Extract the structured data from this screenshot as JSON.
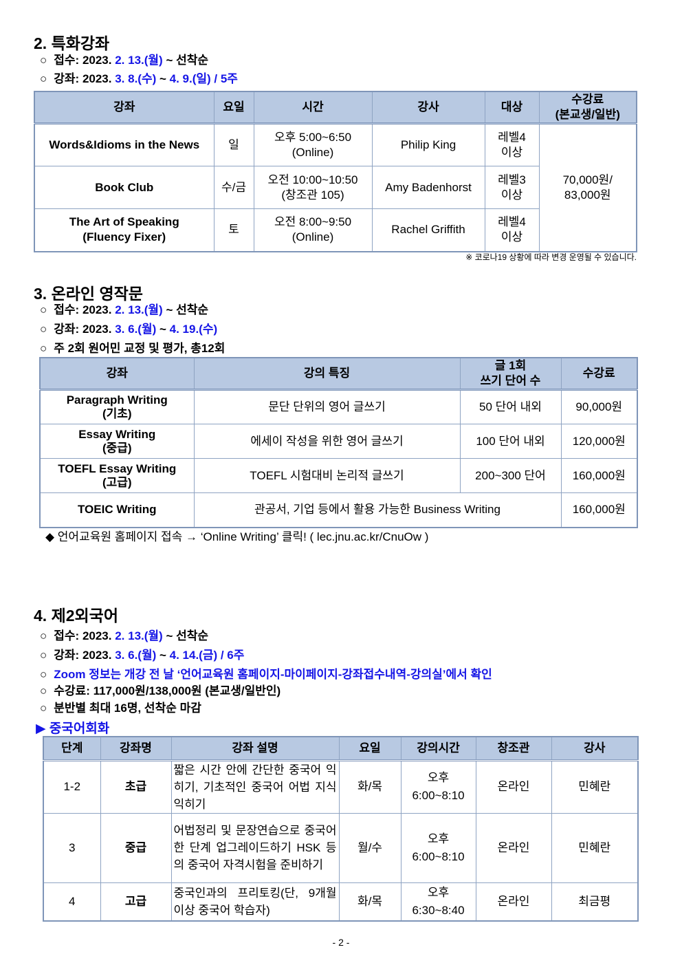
{
  "colors": {
    "accent_blue": "#1515e6",
    "table_header": "#b8c9e2",
    "table_border": "#7f95b8"
  },
  "sec2": {
    "title": "2. 특화강좌",
    "lines": [
      [
        {
          "t": "접수: 2023. "
        },
        {
          "t": "2. 13.(월)",
          "blue": true
        },
        {
          "t": " ~ 선착순"
        }
      ],
      [
        {
          "t": "강좌: 2023. "
        },
        {
          "t": "3. 8.(수)",
          "blue": true
        },
        {
          "t": " ~ "
        },
        {
          "t": "4. 9.(일)",
          "blue": true
        },
        {
          "t": " / 5주",
          "blue": true
        }
      ]
    ],
    "headers": [
      "강좌",
      "요일",
      "시간",
      "강사",
      "대상",
      "수강료\n(본교생/일반)"
    ],
    "rows": [
      {
        "course": "Words&Idioms in the News",
        "day": "일",
        "time": "오후 5:00~6:50\n(Online)",
        "teacher": "Philip King",
        "target": "레벨4\n이상"
      },
      {
        "course": "Book Club",
        "day": "수/금",
        "time": "오전 10:00~10:50\n(창조관 105)",
        "teacher": "Amy Badenhorst",
        "target": "레벨3\n이상"
      },
      {
        "course": "The Art of Speaking\n(Fluency Fixer)",
        "day": "토",
        "time": "오전 8:00~9:50\n(Online)",
        "teacher": "Rachel Griffith",
        "target": "레벨4\n이상"
      }
    ],
    "fee": "70,000원/\n83,000원",
    "note": "※ 코로나19 상황에 따라 변경 운영될 수 있습니다."
  },
  "sec3": {
    "title": "3. 온라인 영작문",
    "lines": [
      [
        {
          "t": "접수: 2023. "
        },
        {
          "t": "2. 13.(월)",
          "blue": true
        },
        {
          "t": " ~ 선착순"
        }
      ],
      [
        {
          "t": "강좌: 2023. "
        },
        {
          "t": "3. 6.(월)",
          "blue": true
        },
        {
          "t": " ~ "
        },
        {
          "t": "4. 19.(수)",
          "blue": true
        }
      ],
      [
        {
          "t": "주 2회 원어민 교정 및 평가, 총12회"
        }
      ]
    ],
    "headers": [
      "강좌",
      "강의 특징",
      "글 1회\n쓰기 단어 수",
      "수강료"
    ],
    "rows": [
      {
        "course": "Paragraph Writing\n(기초)",
        "feature": "문단 단위의 영어 글쓰기",
        "words": "50 단어 내외",
        "fee": "90,000원"
      },
      {
        "course": "Essay Writing\n(중급)",
        "feature": "에세이 작성을 위한 영어 글쓰기",
        "words": "100 단어 내외",
        "fee": "120,000원"
      },
      {
        "course": "TOEFL Essay Writing\n(고급)",
        "feature": "TOEFL 시험대비 논리적 글쓰기",
        "words": "200~300 단어",
        "fee": "160,000원"
      },
      {
        "course": "TOEIC Writing",
        "feature": "관공서, 기업 등에서 활용 가능한 Business Writing",
        "fee": "160,000원"
      }
    ],
    "footnote": "◆ 언어교육원 홈페이지 접속 → ‘Online Writing’ 클릭! ( lec.jnu.ac.kr/CnuOw )"
  },
  "sec4": {
    "title": "4. 제2외국어",
    "lines": [
      [
        {
          "t": "접수: 2023. "
        },
        {
          "t": "2. 13.(월)",
          "blue": true
        },
        {
          "t": " ~ 선착순"
        }
      ],
      [
        {
          "t": "강좌: 2023. "
        },
        {
          "t": "3. 6.(월)",
          "blue": true
        },
        {
          "t": " ~ "
        },
        {
          "t": "4. 14.(금)",
          "blue": true
        },
        {
          "t": " / 6주",
          "blue": true
        }
      ],
      [
        {
          "t": "Zoom 정보는 개강 전 날 ‘언어교육원 홈페이지-마이페이지-강좌접수내역-강의실’에서 확인",
          "blue": true
        }
      ],
      [
        {
          "t": "수강료: 117,000원/138,000원 (본교생/일반인)"
        }
      ],
      [
        {
          "t": "분반별 최대 16명, 선착순 마감"
        }
      ]
    ],
    "subtitle": "▶ 중국어회화",
    "headers": [
      "단계",
      "강좌명",
      "강좌 설명",
      "요일",
      "강의시간",
      "창조관",
      "강사"
    ],
    "rows": [
      {
        "level": "1-2",
        "name": "초급",
        "desc": "짧은 시간 안에 간단한 중국어 익히기, 기초적인 중국어 어법 지식 익히기",
        "day": "화/목",
        "time": "오후\n6:00~8:10",
        "room": "온라인",
        "teacher": "민혜란"
      },
      {
        "level": "3",
        "name": "중급",
        "desc": "어법정리 및 문장연습으로 중국어 한 단계 업그레이드하기 HSK 등의 중국어 자격시험을 준비하기",
        "day": "월/수",
        "time": "오후\n6:00~8:10",
        "room": "온라인",
        "teacher": "민혜란"
      },
      {
        "level": "4",
        "name": "고급",
        "desc": "중국인과의 프리토킹(단, 9개월 이상 중국어 학습자)",
        "day": "화/목",
        "time": "오후\n6:30~8:40",
        "room": "온라인",
        "teacher": "최금평"
      }
    ]
  },
  "page_number": "- 2 -"
}
